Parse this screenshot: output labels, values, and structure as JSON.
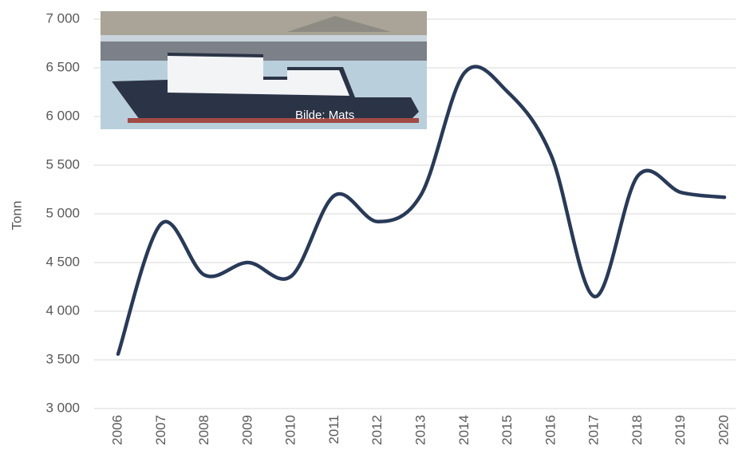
{
  "chart_data": {
    "type": "line",
    "y_label": "Tonn",
    "image_caption": "Bilde: Mats",
    "categories": [
      "2006",
      "2007",
      "2008",
      "2009",
      "2010",
      "2011",
      "2012",
      "2013",
      "2014",
      "2015",
      "2016",
      "2017",
      "2018",
      "2019",
      "2020"
    ],
    "values": [
      3560,
      4900,
      4370,
      4500,
      4360,
      5190,
      4920,
      5200,
      6450,
      6250,
      5600,
      4150,
      5390,
      5220,
      5170
    ],
    "color": "#283a58",
    "smooth": true,
    "grid": true,
    "ylim": [
      3000,
      7000
    ],
    "yticks": [
      {
        "value": 3000,
        "label": "3 000"
      },
      {
        "value": 3500,
        "label": "3 500"
      },
      {
        "value": 4000,
        "label": "4 000"
      },
      {
        "value": 4500,
        "label": "4 500"
      },
      {
        "value": 5000,
        "label": "5 000"
      },
      {
        "value": 5500,
        "label": "5 500"
      },
      {
        "value": 6000,
        "label": "6 000"
      },
      {
        "value": 6500,
        "label": "6 500"
      },
      {
        "value": 7000,
        "label": "7 000"
      }
    ]
  }
}
